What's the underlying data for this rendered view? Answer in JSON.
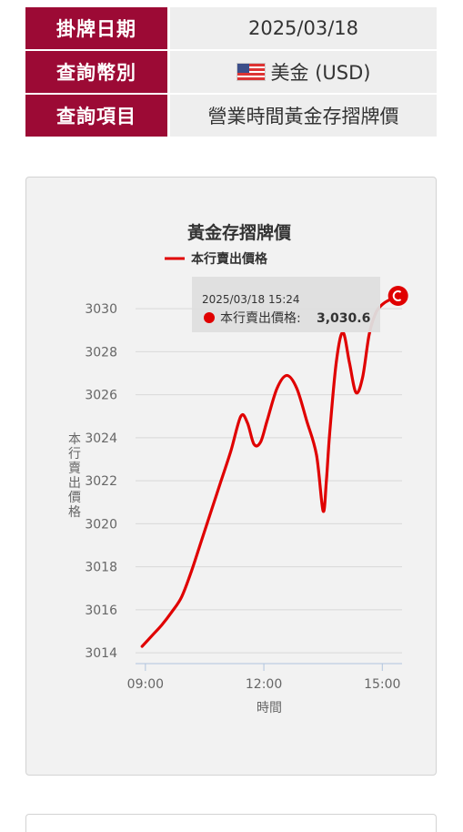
{
  "info": {
    "rows": [
      {
        "label": "掛牌日期",
        "value": "2025/03/18"
      },
      {
        "label": "查詢幣別",
        "value": "美金 (USD)"
      },
      {
        "label": "查詢項目",
        "value": "營業時間黃金存摺牌價"
      }
    ]
  },
  "chart_data": {
    "type": "line",
    "title": "黃金存摺牌價",
    "legend": "本行賣出價格",
    "xlabel": "時間",
    "ylabel": "本行賣出價格",
    "x_ticks": [
      "09:00",
      "12:00",
      "15:00"
    ],
    "y_ticks": [
      3014,
      3016,
      3018,
      3020,
      3022,
      3024,
      3026,
      3028,
      3030
    ],
    "ylim": [
      3013.5,
      3030.6
    ],
    "xlim": [
      "08:45",
      "15:30"
    ],
    "grid": true,
    "line_color": "#e00000",
    "series": [
      {
        "name": "本行賣出價格",
        "x": [
          "08:55",
          "09:10",
          "09:25",
          "09:40",
          "09:55",
          "10:10",
          "10:25",
          "10:40",
          "10:55",
          "11:10",
          "11:25",
          "11:35",
          "11:45",
          "11:55",
          "12:05",
          "12:20",
          "12:35",
          "12:50",
          "13:05",
          "13:20",
          "13:30",
          "13:35",
          "13:40",
          "13:50",
          "14:00",
          "14:10",
          "14:20",
          "14:30",
          "14:40",
          "14:50",
          "15:00",
          "15:10",
          "15:24"
        ],
        "values": [
          3014.3,
          3014.8,
          3015.3,
          3015.9,
          3016.6,
          3017.8,
          3019.2,
          3020.6,
          3022.0,
          3023.4,
          3025.0,
          3024.7,
          3023.7,
          3023.8,
          3024.8,
          3026.3,
          3026.9,
          3026.3,
          3024.8,
          3023.2,
          3020.6,
          3022.0,
          3024.2,
          3027.5,
          3028.9,
          3027.5,
          3026.1,
          3026.8,
          3028.8,
          3029.8,
          3030.2,
          3030.4,
          3030.6
        ]
      }
    ],
    "tooltip": {
      "time": "2025/03/18 15:24",
      "label": "本行賣出價格:",
      "value": "3,030.6"
    }
  }
}
